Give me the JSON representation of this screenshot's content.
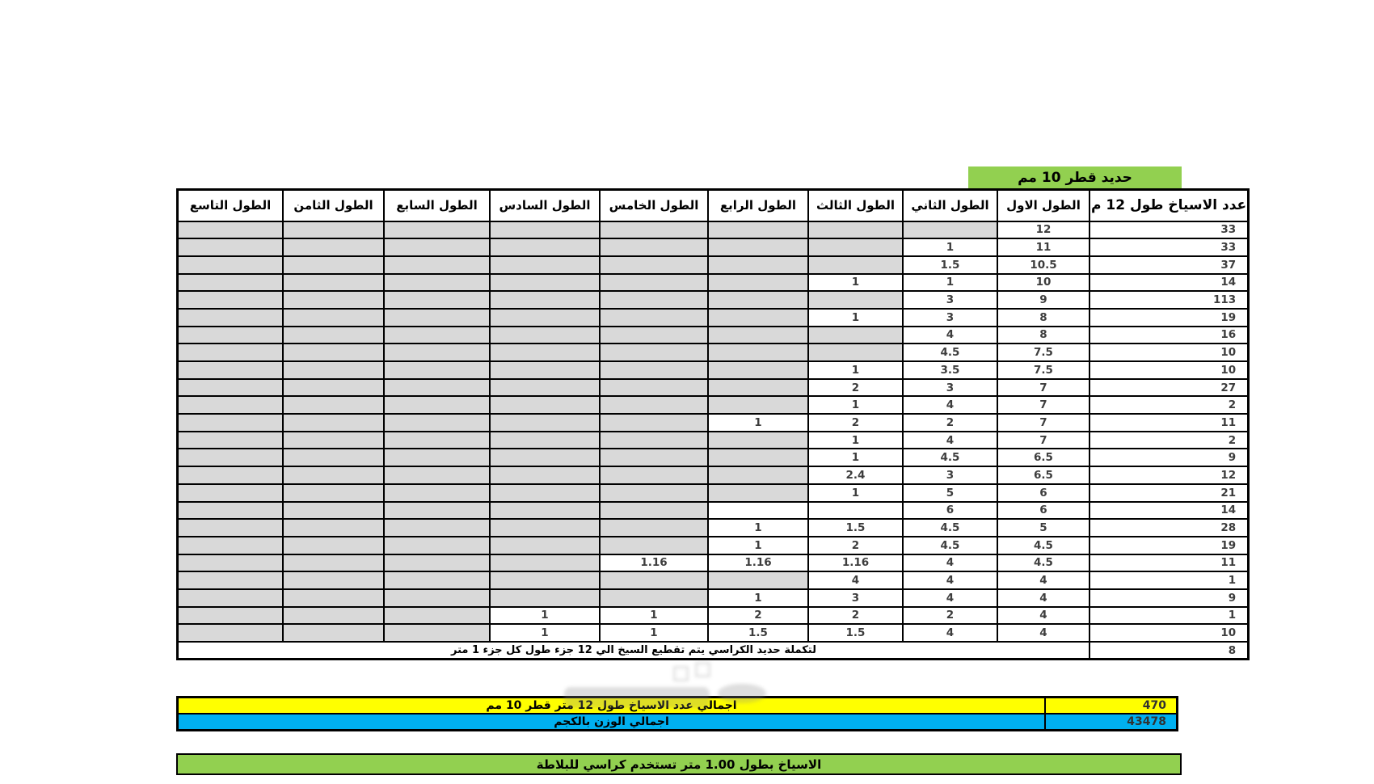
{
  "badge": {
    "label": "حديد قطر 10 مم"
  },
  "colors": {
    "green": "#92D050",
    "yellow": "#FFFF00",
    "blue": "#00B0F0",
    "gray_empty": "#D9D9D9"
  },
  "table": {
    "headers": [
      "عدد الاسياخ طول 12 م",
      "الطول الاول",
      "الطول الثاني",
      "الطول الثالث",
      "الطول الرابع",
      "الطول الخامس",
      "الطول السادس",
      "الطول السابع",
      "الطول الثامن",
      "الطول التاسع"
    ],
    "rows": [
      {
        "v": [
          "33",
          "12",
          "",
          "",
          "",
          "",
          "",
          "",
          "",
          ""
        ]
      },
      {
        "v": [
          "33",
          "11",
          "1",
          "",
          "",
          "",
          "",
          "",
          "",
          ""
        ]
      },
      {
        "v": [
          "37",
          "10.5",
          "1.5",
          "",
          "",
          "",
          "",
          "",
          "",
          ""
        ]
      },
      {
        "v": [
          "14",
          "10",
          "1",
          "1",
          "",
          "",
          "",
          "",
          "",
          ""
        ]
      },
      {
        "v": [
          "113",
          "9",
          "3",
          "",
          "",
          "",
          "",
          "",
          "",
          ""
        ]
      },
      {
        "v": [
          "19",
          "8",
          "3",
          "1",
          "",
          "",
          "",
          "",
          "",
          ""
        ]
      },
      {
        "v": [
          "16",
          "8",
          "4",
          "",
          "",
          "",
          "",
          "",
          "",
          ""
        ]
      },
      {
        "v": [
          "10",
          "7.5",
          "4.5",
          "",
          "",
          "",
          "",
          "",
          "",
          ""
        ]
      },
      {
        "v": [
          "10",
          "7.5",
          "3.5",
          "1",
          "",
          "",
          "",
          "",
          "",
          ""
        ]
      },
      {
        "v": [
          "27",
          "7",
          "3",
          "2",
          "",
          "",
          "",
          "",
          "",
          ""
        ]
      },
      {
        "v": [
          "2",
          "7",
          "4",
          "1",
          "",
          "",
          "",
          "",
          "",
          ""
        ]
      },
      {
        "v": [
          "11",
          "7",
          "2",
          "2",
          "1",
          "",
          "",
          "",
          "",
          ""
        ]
      },
      {
        "v": [
          "2",
          "7",
          "4",
          "1",
          "",
          "",
          "",
          "",
          "",
          ""
        ]
      },
      {
        "v": [
          "9",
          "6.5",
          "4.5",
          "1",
          "",
          "",
          "",
          "",
          "",
          ""
        ]
      },
      {
        "v": [
          "12",
          "6.5",
          "3",
          "2.4",
          "",
          "",
          "",
          "",
          "",
          ""
        ]
      },
      {
        "v": [
          "21",
          "6",
          "5",
          "1",
          "",
          "",
          "",
          "",
          "",
          ""
        ]
      },
      {
        "v": [
          "14",
          "6",
          "6",
          "",
          "",
          "",
          "",
          "",
          "",
          ""
        ],
        "white_empty": [
          3,
          4
        ]
      },
      {
        "v": [
          "28",
          "5",
          "4.5",
          "1.5",
          "1",
          "",
          "",
          "",
          "",
          ""
        ]
      },
      {
        "v": [
          "19",
          "4.5",
          "4.5",
          "2",
          "1",
          "",
          "",
          "",
          "",
          ""
        ]
      },
      {
        "v": [
          "11",
          "4.5",
          "4",
          "1.16",
          "1.16",
          "1.16",
          "",
          "",
          "",
          ""
        ]
      },
      {
        "v": [
          "1",
          "4",
          "4",
          "4",
          "",
          "",
          "",
          "",
          "",
          ""
        ]
      },
      {
        "v": [
          "9",
          "4",
          "4",
          "3",
          "1",
          "",
          "",
          "",
          "",
          ""
        ]
      },
      {
        "v": [
          "1",
          "4",
          "2",
          "2",
          "2",
          "1",
          "1",
          "",
          "",
          ""
        ]
      },
      {
        "v": [
          "10",
          "4",
          "4",
          "1.5",
          "1.5",
          "1",
          "1",
          "",
          "",
          ""
        ]
      }
    ],
    "footer": {
      "note": "لتكملة حديد الكراسي يتم تقطيع السيخ الي 12 جزء طول كل جزء 1 متر",
      "count": "8"
    }
  },
  "summary": {
    "total_bars": {
      "label": "اجمالي عدد الاسياخ طول 12 متر قطر 10 مم",
      "value": "470"
    },
    "total_weight": {
      "label": "اجمالي الوزن بالكجم",
      "value": "43478"
    }
  },
  "bottom_note": {
    "label": "الاسياخ بطول 1.00 متر  تستخدم كراسي للبلاطة"
  }
}
